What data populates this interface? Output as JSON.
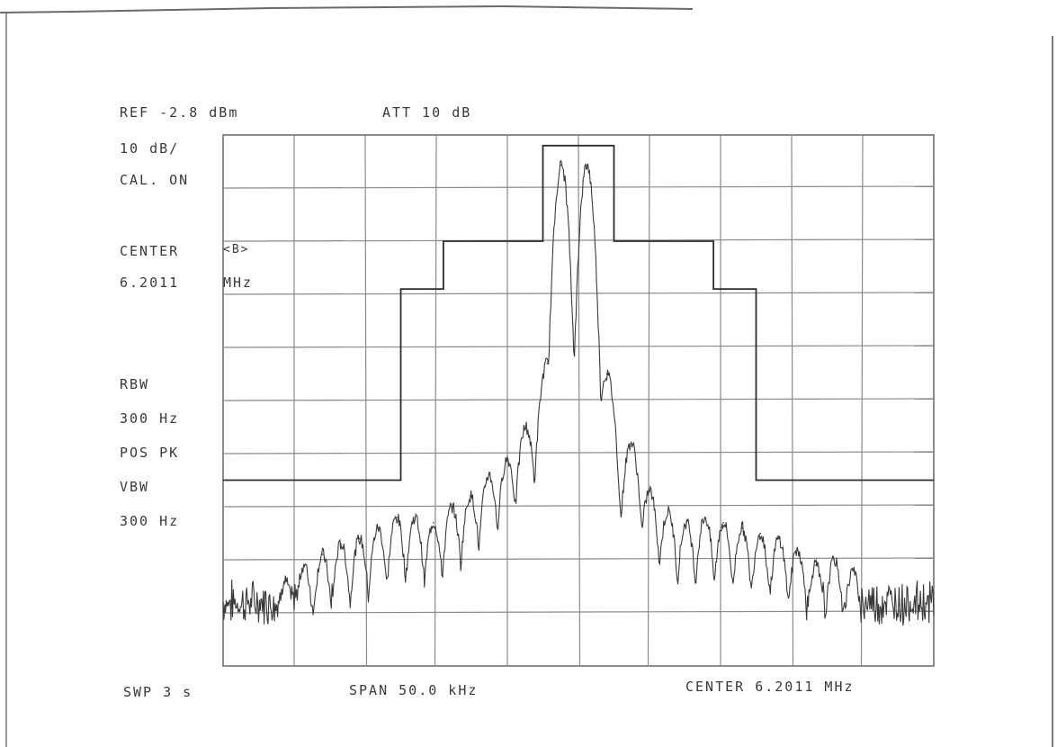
{
  "header": {
    "ref": "REF -2.8 dBm",
    "att": "ATT 10 dB"
  },
  "side": {
    "scale": "10 dB/",
    "cal": "CAL. ON",
    "center_label": "CENTER",
    "center_marker": "<B>",
    "center_value": "6.2011",
    "center_unit": "MHz",
    "rbw_label": "RBW",
    "rbw_value": "300 Hz",
    "detector": "POS PK",
    "vbw_label": "VBW",
    "vbw_value": "300 Hz"
  },
  "footer": {
    "sweep": "SWP 3 s",
    "span": "SPAN 50.0 kHz",
    "center": "CENTER 6.2011 MHz"
  },
  "chart_data": {
    "type": "line",
    "grid": true,
    "xlim": [
      -25,
      25
    ],
    "ylim": [
      -102.8,
      -2.8
    ],
    "x_unit": "kHz offset from center",
    "y_unit": "dBm",
    "mask": {
      "x": [
        -25,
        -12.5,
        -12.5,
        -9.5,
        -9.5,
        -2.5,
        -2.5,
        0,
        2.5,
        2.5,
        9.5,
        9.5,
        12.5,
        12.5,
        25
      ],
      "y": [
        -67.8,
        -67.8,
        -31.8,
        -31.8,
        -22.8,
        -22.8,
        -4.8,
        -4.8,
        -4.8,
        -22.8,
        -22.8,
        -31.8,
        -31.8,
        -67.8,
        -67.8
      ]
    },
    "spectrum": {
      "peaks": [
        {
          "x": -1.2,
          "y": -8.5
        },
        {
          "x": 0.6,
          "y": -8.5
        },
        {
          "x": -2.2,
          "y": -45.8
        },
        {
          "x": 2.0,
          "y": -47.8
        },
        {
          "x": -3.7,
          "y": -57.8
        },
        {
          "x": 3.7,
          "y": -60.8
        },
        {
          "x": -5.0,
          "y": -63.8
        },
        {
          "x": 5.0,
          "y": -69.8
        },
        {
          "x": -6.3,
          "y": -66.8
        },
        {
          "x": 6.3,
          "y": -73.8
        },
        {
          "x": -7.6,
          "y": -70.8
        },
        {
          "x": 7.6,
          "y": -75.8
        },
        {
          "x": -8.9,
          "y": -72.8
        },
        {
          "x": 8.9,
          "y": -74.8
        },
        {
          "x": -10.2,
          "y": -75.8
        },
        {
          "x": 10.2,
          "y": -75.8
        },
        {
          "x": -11.5,
          "y": -74.8
        },
        {
          "x": 11.5,
          "y": -76.8
        },
        {
          "x": -12.8,
          "y": -74.8
        },
        {
          "x": 12.8,
          "y": -77.8
        },
        {
          "x": -14.1,
          "y": -76.8
        },
        {
          "x": 14.1,
          "y": -78.8
        },
        {
          "x": -15.4,
          "y": -78.8
        },
        {
          "x": 15.4,
          "y": -80.8
        },
        {
          "x": -16.7,
          "y": -79.8
        },
        {
          "x": 16.7,
          "y": -83.8
        },
        {
          "x": -18.0,
          "y": -81.8
        },
        {
          "x": 18.0,
          "y": -82.8
        },
        {
          "x": -19.3,
          "y": -83.8
        },
        {
          "x": 19.3,
          "y": -84.8
        },
        {
          "x": -20.6,
          "y": -86.8
        }
      ],
      "noise_floor": -90.8
    }
  }
}
